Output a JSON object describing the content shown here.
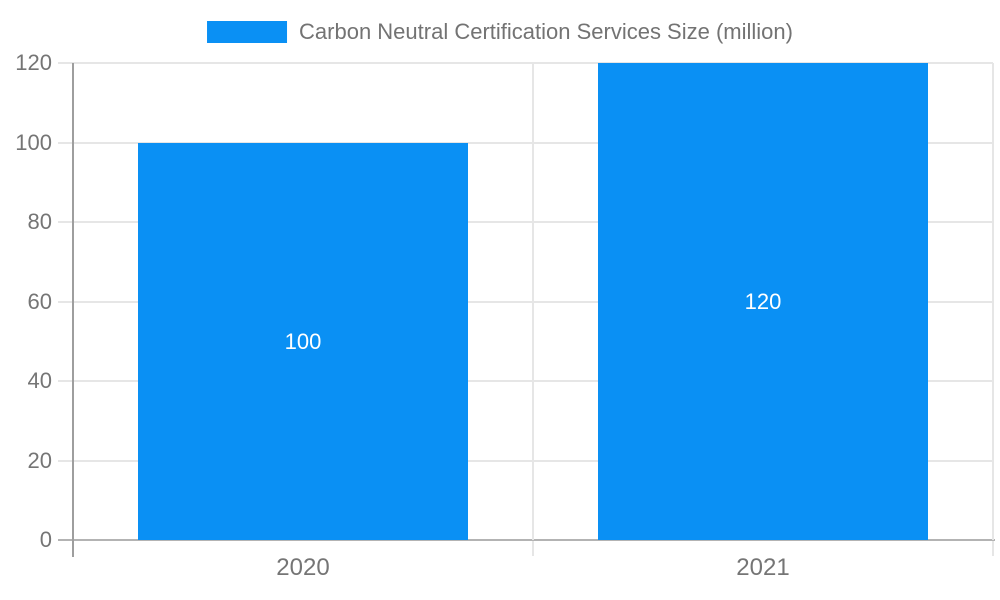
{
  "chart_data": {
    "type": "bar",
    "title": "Carbon Neutral Certification Services Size (million)",
    "legend": {
      "position": "top",
      "entries": [
        "Carbon Neutral Certification Services Size (million)"
      ]
    },
    "categories": [
      "2020",
      "2021"
    ],
    "series": [
      {
        "name": "Carbon Neutral Certification Services Size (million)",
        "values": [
          100,
          120
        ]
      }
    ],
    "bar_value_labels": [
      "100",
      "120"
    ],
    "xlabel": "",
    "ylabel": "",
    "ylim": [
      0,
      120
    ],
    "yticks": [
      0,
      20,
      40,
      60,
      80,
      100,
      120
    ],
    "grid": true,
    "colors": {
      "bar": "#0a90f4",
      "bar_label_text": "#ffffff",
      "gridline": "#e6e6e6",
      "x_axis_line": "#b3b3b3",
      "y_axis_line": "#9e9e9e",
      "tick_label_text": "#757575",
      "legend_text": "#737373",
      "background": "#ffffff"
    }
  }
}
